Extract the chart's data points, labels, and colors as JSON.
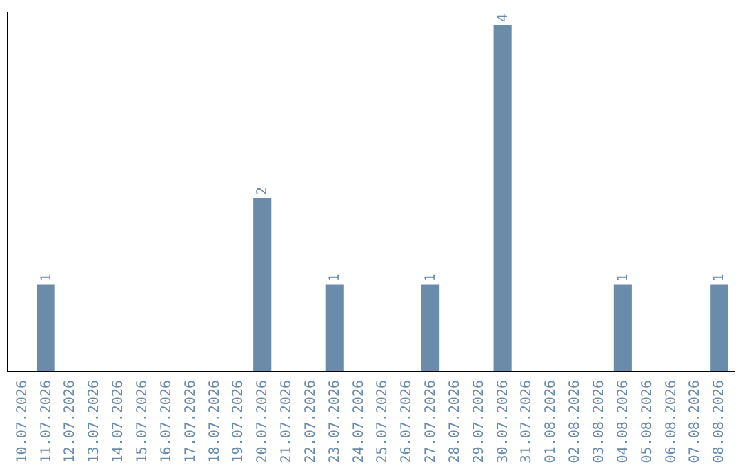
{
  "chart_data": {
    "type": "bar",
    "categories": [
      "10.07.2026",
      "11.07.2026",
      "12.07.2026",
      "13.07.2026",
      "14.07.2026",
      "15.07.2026",
      "16.07.2026",
      "17.07.2026",
      "18.07.2026",
      "19.07.2026",
      "20.07.2026",
      "21.07.2026",
      "22.07.2026",
      "23.07.2026",
      "24.07.2026",
      "25.07.2026",
      "26.07.2026",
      "27.07.2026",
      "28.07.2026",
      "29.07.2026",
      "30.07.2026",
      "31.07.2026",
      "01.08.2026",
      "02.08.2026",
      "03.08.2026",
      "04.08.2026",
      "05.08.2026",
      "06.08.2026",
      "07.08.2026",
      "08.08.2026"
    ],
    "values": [
      0,
      1,
      0,
      0,
      0,
      0,
      0,
      0,
      0,
      0,
      2,
      0,
      0,
      1,
      0,
      0,
      0,
      1,
      0,
      0,
      4,
      0,
      0,
      0,
      0,
      1,
      0,
      0,
      0,
      1
    ],
    "value_labels": [
      null,
      "1",
      null,
      null,
      null,
      null,
      null,
      null,
      null,
      null,
      "2",
      null,
      null,
      "1",
      null,
      null,
      null,
      "1",
      null,
      null,
      "4",
      null,
      null,
      null,
      null,
      "1",
      null,
      null,
      null,
      "1"
    ],
    "color": "#6a8caa",
    "ylim": [
      0,
      4.16
    ],
    "tick_labels": "x",
    "grid": false
  }
}
